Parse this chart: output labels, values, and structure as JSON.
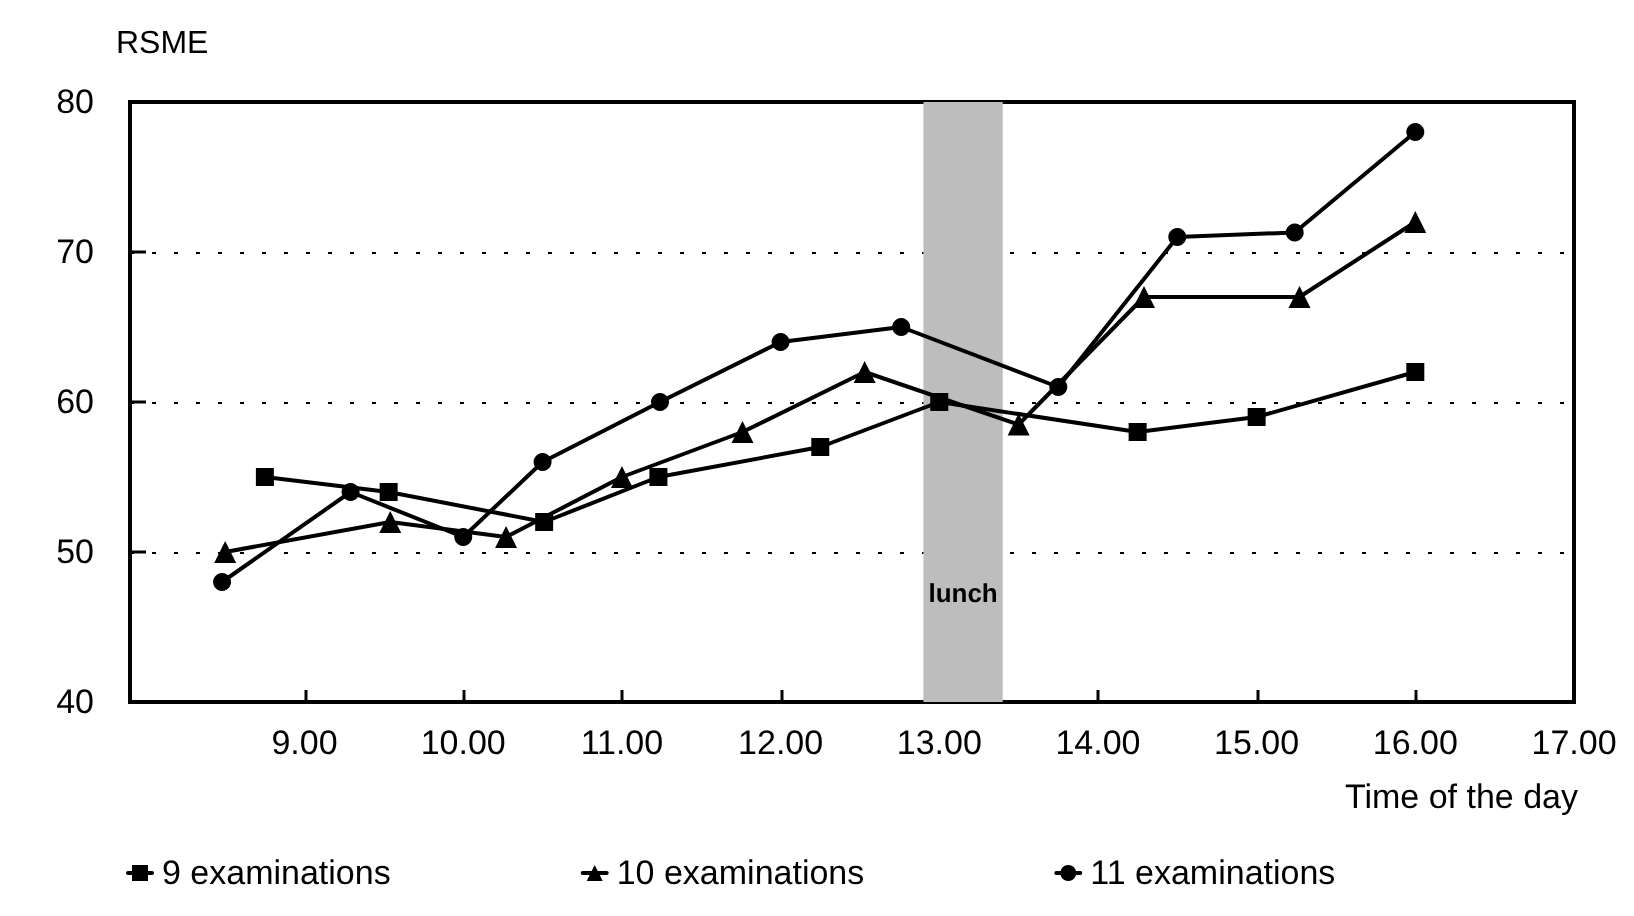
{
  "chart_data": {
    "type": "line",
    "ylabel": "RSME",
    "xlabel": "Time of the day",
    "xlim": [
      7.9,
      17
    ],
    "xticks": [
      {
        "value": 9,
        "label": "9.00"
      },
      {
        "value": 10,
        "label": "10.00"
      },
      {
        "value": 11,
        "label": "11.00"
      },
      {
        "value": 12,
        "label": "12.00"
      },
      {
        "value": 13,
        "label": "13.00"
      },
      {
        "value": 14,
        "label": "14.00"
      },
      {
        "value": 15,
        "label": "15.00"
      },
      {
        "value": 16,
        "label": "16.00"
      },
      {
        "value": 17,
        "label": "17.00"
      }
    ],
    "ylim": [
      40,
      80
    ],
    "yticks": [
      40,
      50,
      60,
      70,
      80
    ],
    "grid": "y",
    "legend": "bottom left",
    "line_style": "solid",
    "bands": [
      {
        "axis": "x",
        "from": 12.9,
        "to": 13.4,
        "label": "lunch",
        "color": "#bdbdbd"
      }
    ],
    "series": [
      {
        "name": "9 examinations",
        "color": "#000000",
        "marker": "square",
        "x": [
          8.75,
          9.53,
          10.51,
          11.23,
          12.25,
          13.0,
          14.25,
          15.0,
          16.0
        ],
        "values": [
          55,
          54,
          52,
          55,
          57,
          60,
          58,
          59,
          62
        ]
      },
      {
        "name": "10 examinations",
        "color": "#000000",
        "marker": "triangle",
        "x": [
          8.5,
          9.54,
          10.27,
          11.0,
          11.76,
          12.53,
          13.5,
          14.29,
          15.27,
          16.0
        ],
        "values": [
          50,
          52,
          51,
          55,
          58,
          62,
          58.5,
          67,
          67,
          72
        ]
      },
      {
        "name": "11 examinations",
        "color": "#000000",
        "marker": "circle",
        "x": [
          8.48,
          9.29,
          10.0,
          10.5,
          11.24,
          12.0,
          12.76,
          13.75,
          14.5,
          15.24,
          16.0
        ],
        "values": [
          48,
          54,
          51,
          56,
          60,
          64,
          65,
          61,
          71,
          71.3,
          78
        ]
      }
    ]
  }
}
